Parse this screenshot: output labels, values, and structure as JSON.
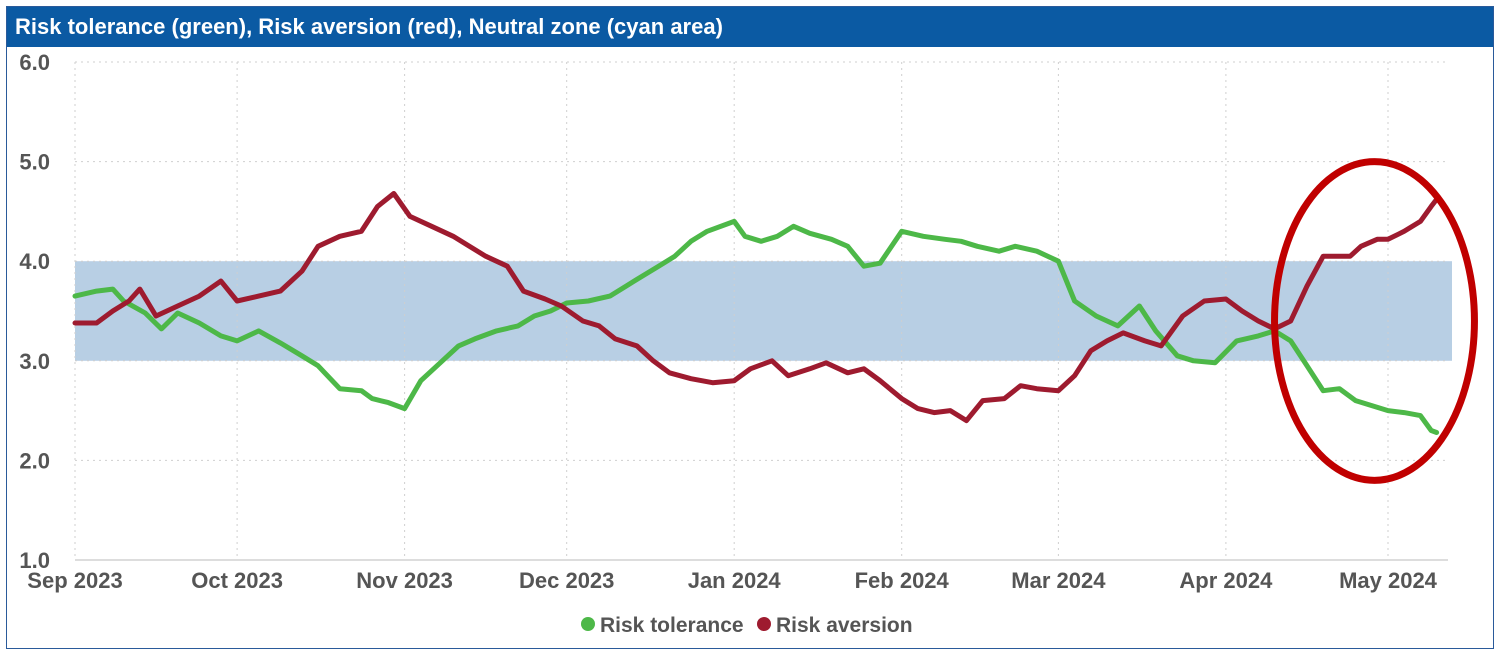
{
  "chart_data": {
    "type": "line",
    "title": "Risk tolerance (green), Risk aversion (red), Neutral zone (cyan area)",
    "xlabel": "",
    "ylabel": "",
    "ylim": [
      1.0,
      6.0
    ],
    "y_ticks": [
      "1.0",
      "2.0",
      "3.0",
      "4.0",
      "5.0",
      "6.0"
    ],
    "x_range": [
      "2023-09-01",
      "2024-05-10"
    ],
    "x_ticks": [
      {
        "date": "2023-09-01",
        "label": "Sep 2023"
      },
      {
        "date": "2023-10-01",
        "label": "Oct 2023"
      },
      {
        "date": "2023-11-01",
        "label": "Nov 2023"
      },
      {
        "date": "2023-12-01",
        "label": "Dec 2023"
      },
      {
        "date": "2024-01-01",
        "label": "Jan 2024"
      },
      {
        "date": "2024-02-01",
        "label": "Feb 2024"
      },
      {
        "date": "2024-03-01",
        "label": "Mar 2024"
      },
      {
        "date": "2024-04-01",
        "label": "Apr 2024"
      },
      {
        "date": "2024-05-01",
        "label": "May 2024"
      }
    ],
    "grid": true,
    "neutral_zone": {
      "y_from": 3.0,
      "y_to": 4.0,
      "color": "#b8cfe4"
    },
    "highlight_ellipse": {
      "color": "#c00000",
      "x_from": "2024-04-10",
      "x_to": "2024-05-17",
      "y_from": 1.8,
      "y_to": 5.0
    },
    "legend_position": "bottom-center",
    "series": [
      {
        "name": "Risk tolerance",
        "color": "#4db848",
        "points": [
          [
            "2023-09-01",
            3.65
          ],
          [
            "2023-09-05",
            3.7
          ],
          [
            "2023-09-08",
            3.72
          ],
          [
            "2023-09-10",
            3.6
          ],
          [
            "2023-09-14",
            3.48
          ],
          [
            "2023-09-17",
            3.32
          ],
          [
            "2023-09-20",
            3.48
          ],
          [
            "2023-09-24",
            3.38
          ],
          [
            "2023-09-28",
            3.25
          ],
          [
            "2023-10-01",
            3.2
          ],
          [
            "2023-10-05",
            3.3
          ],
          [
            "2023-10-09",
            3.18
          ],
          [
            "2023-10-13",
            3.05
          ],
          [
            "2023-10-16",
            2.95
          ],
          [
            "2023-10-20",
            2.72
          ],
          [
            "2023-10-24",
            2.7
          ],
          [
            "2023-10-26",
            2.62
          ],
          [
            "2023-10-29",
            2.58
          ],
          [
            "2023-11-01",
            2.52
          ],
          [
            "2023-11-04",
            2.8
          ],
          [
            "2023-11-08",
            3.0
          ],
          [
            "2023-11-11",
            3.15
          ],
          [
            "2023-11-14",
            3.22
          ],
          [
            "2023-11-18",
            3.3
          ],
          [
            "2023-11-22",
            3.35
          ],
          [
            "2023-11-25",
            3.45
          ],
          [
            "2023-11-28",
            3.5
          ],
          [
            "2023-12-01",
            3.58
          ],
          [
            "2023-12-05",
            3.6
          ],
          [
            "2023-12-09",
            3.65
          ],
          [
            "2023-12-12",
            3.75
          ],
          [
            "2023-12-15",
            3.85
          ],
          [
            "2023-12-18",
            3.95
          ],
          [
            "2023-12-21",
            4.05
          ],
          [
            "2023-12-24",
            4.2
          ],
          [
            "2023-12-27",
            4.3
          ],
          [
            "2024-01-01",
            4.4
          ],
          [
            "2024-01-03",
            4.25
          ],
          [
            "2024-01-06",
            4.2
          ],
          [
            "2024-01-09",
            4.25
          ],
          [
            "2024-01-12",
            4.35
          ],
          [
            "2024-01-15",
            4.28
          ],
          [
            "2024-01-19",
            4.22
          ],
          [
            "2024-01-22",
            4.15
          ],
          [
            "2024-01-25",
            3.95
          ],
          [
            "2024-01-28",
            3.98
          ],
          [
            "2024-02-01",
            4.3
          ],
          [
            "2024-02-05",
            4.25
          ],
          [
            "2024-02-09",
            4.22
          ],
          [
            "2024-02-12",
            4.2
          ],
          [
            "2024-02-15",
            4.15
          ],
          [
            "2024-02-19",
            4.1
          ],
          [
            "2024-02-22",
            4.15
          ],
          [
            "2024-02-26",
            4.1
          ],
          [
            "2024-03-01",
            4.0
          ],
          [
            "2024-03-04",
            3.6
          ],
          [
            "2024-03-08",
            3.45
          ],
          [
            "2024-03-12",
            3.35
          ],
          [
            "2024-03-16",
            3.55
          ],
          [
            "2024-03-19",
            3.3
          ],
          [
            "2024-03-23",
            3.05
          ],
          [
            "2024-03-26",
            3.0
          ],
          [
            "2024-03-30",
            2.98
          ],
          [
            "2024-04-03",
            3.2
          ],
          [
            "2024-04-07",
            3.25
          ],
          [
            "2024-04-10",
            3.3
          ],
          [
            "2024-04-13",
            3.2
          ],
          [
            "2024-04-16",
            2.95
          ],
          [
            "2024-04-19",
            2.7
          ],
          [
            "2024-04-22",
            2.72
          ],
          [
            "2024-04-25",
            2.6
          ],
          [
            "2024-04-28",
            2.55
          ],
          [
            "2024-05-01",
            2.5
          ],
          [
            "2024-05-04",
            2.48
          ],
          [
            "2024-05-07",
            2.45
          ],
          [
            "2024-05-09",
            2.3
          ],
          [
            "2024-05-10",
            2.28
          ]
        ]
      },
      {
        "name": "Risk aversion",
        "color": "#9e1b2f",
        "points": [
          [
            "2023-09-01",
            3.38
          ],
          [
            "2023-09-05",
            3.38
          ],
          [
            "2023-09-08",
            3.5
          ],
          [
            "2023-09-11",
            3.6
          ],
          [
            "2023-09-13",
            3.72
          ],
          [
            "2023-09-16",
            3.45
          ],
          [
            "2023-09-20",
            3.55
          ],
          [
            "2023-09-24",
            3.65
          ],
          [
            "2023-09-28",
            3.8
          ],
          [
            "2023-10-01",
            3.6
          ],
          [
            "2023-10-05",
            3.65
          ],
          [
            "2023-10-09",
            3.7
          ],
          [
            "2023-10-13",
            3.9
          ],
          [
            "2023-10-16",
            4.15
          ],
          [
            "2023-10-20",
            4.25
          ],
          [
            "2023-10-24",
            4.3
          ],
          [
            "2023-10-27",
            4.55
          ],
          [
            "2023-10-30",
            4.68
          ],
          [
            "2023-11-02",
            4.45
          ],
          [
            "2023-11-06",
            4.35
          ],
          [
            "2023-11-10",
            4.25
          ],
          [
            "2023-11-13",
            4.15
          ],
          [
            "2023-11-16",
            4.05
          ],
          [
            "2023-11-20",
            3.95
          ],
          [
            "2023-11-23",
            3.7
          ],
          [
            "2023-11-27",
            3.62
          ],
          [
            "2023-11-30",
            3.55
          ],
          [
            "2023-12-04",
            3.4
          ],
          [
            "2023-12-07",
            3.35
          ],
          [
            "2023-12-10",
            3.22
          ],
          [
            "2023-12-14",
            3.15
          ],
          [
            "2023-12-17",
            3.0
          ],
          [
            "2023-12-20",
            2.88
          ],
          [
            "2023-12-24",
            2.82
          ],
          [
            "2023-12-28",
            2.78
          ],
          [
            "2024-01-01",
            2.8
          ],
          [
            "2024-01-04",
            2.92
          ],
          [
            "2024-01-08",
            3.0
          ],
          [
            "2024-01-11",
            2.85
          ],
          [
            "2024-01-15",
            2.92
          ],
          [
            "2024-01-18",
            2.98
          ],
          [
            "2024-01-22",
            2.88
          ],
          [
            "2024-01-25",
            2.92
          ],
          [
            "2024-01-28",
            2.8
          ],
          [
            "2024-02-01",
            2.62
          ],
          [
            "2024-02-04",
            2.52
          ],
          [
            "2024-02-07",
            2.48
          ],
          [
            "2024-02-10",
            2.5
          ],
          [
            "2024-02-13",
            2.4
          ],
          [
            "2024-02-16",
            2.6
          ],
          [
            "2024-02-20",
            2.62
          ],
          [
            "2024-02-23",
            2.75
          ],
          [
            "2024-02-26",
            2.72
          ],
          [
            "2024-03-01",
            2.7
          ],
          [
            "2024-03-04",
            2.85
          ],
          [
            "2024-03-07",
            3.1
          ],
          [
            "2024-03-10",
            3.2
          ],
          [
            "2024-03-13",
            3.28
          ],
          [
            "2024-03-17",
            3.2
          ],
          [
            "2024-03-20",
            3.15
          ],
          [
            "2024-03-24",
            3.45
          ],
          [
            "2024-03-28",
            3.6
          ],
          [
            "2024-04-01",
            3.62
          ],
          [
            "2024-04-04",
            3.5
          ],
          [
            "2024-04-07",
            3.4
          ],
          [
            "2024-04-10",
            3.32
          ],
          [
            "2024-04-13",
            3.4
          ],
          [
            "2024-04-16",
            3.75
          ],
          [
            "2024-04-19",
            4.05
          ],
          [
            "2024-04-22",
            4.05
          ],
          [
            "2024-04-24",
            4.05
          ],
          [
            "2024-04-26",
            4.15
          ],
          [
            "2024-04-29",
            4.22
          ],
          [
            "2024-05-01",
            4.22
          ],
          [
            "2024-05-04",
            4.3
          ],
          [
            "2024-05-07",
            4.4
          ],
          [
            "2024-05-09",
            4.55
          ],
          [
            "2024-05-10",
            4.62
          ]
        ]
      }
    ]
  }
}
